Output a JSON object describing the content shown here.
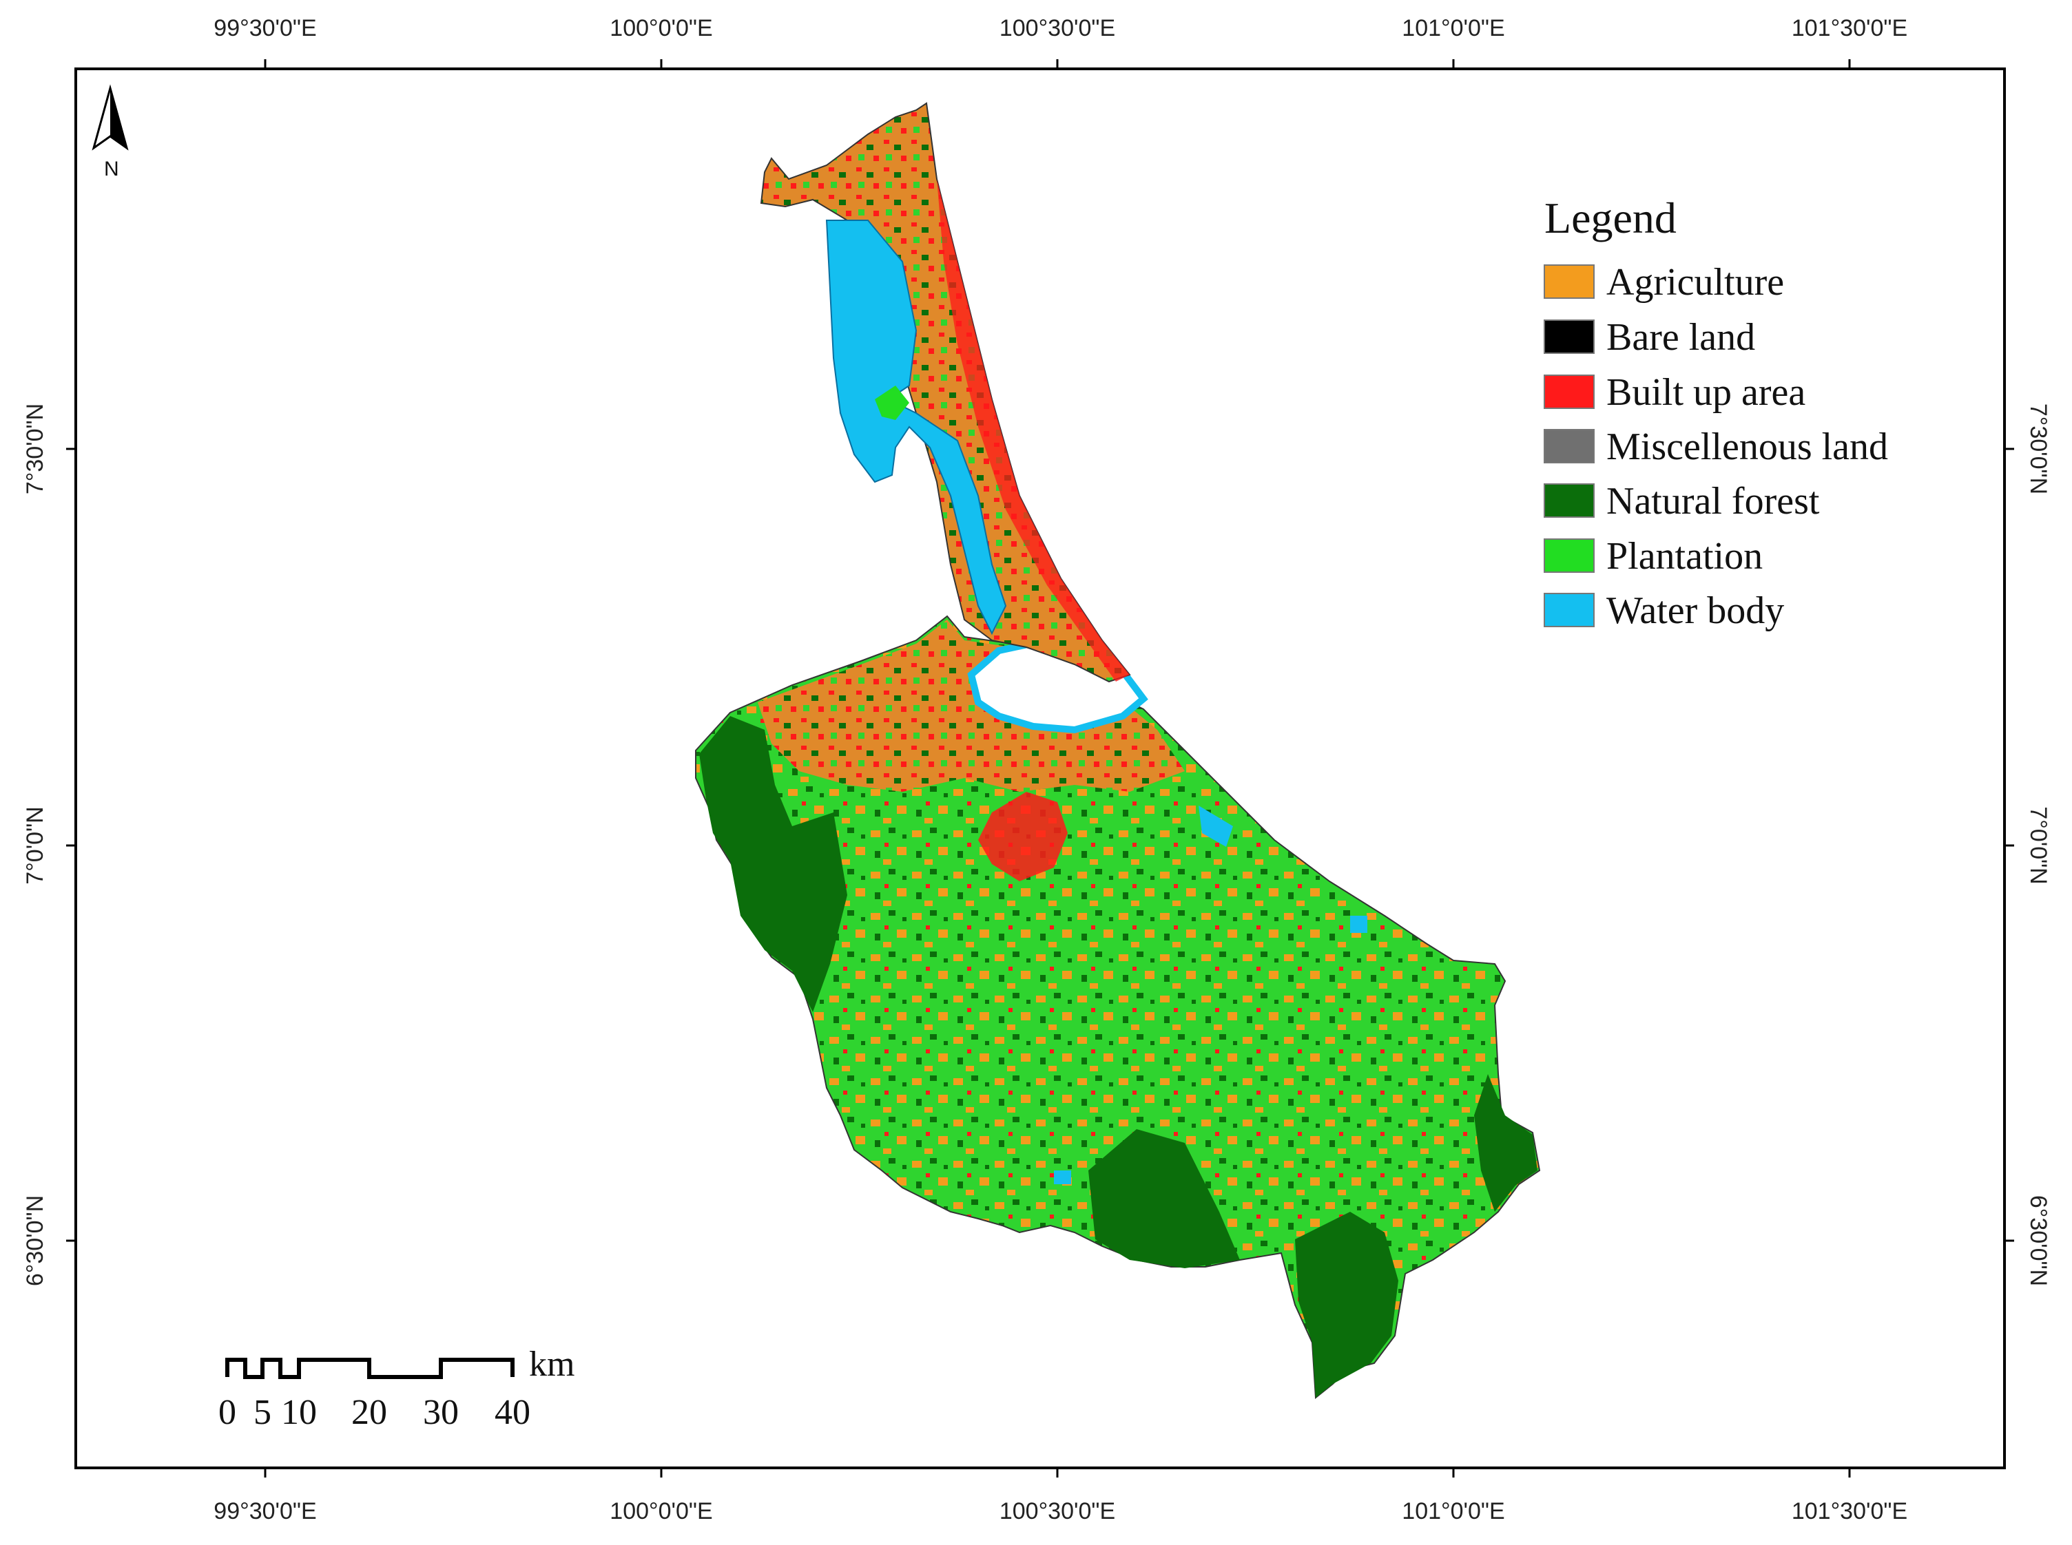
{
  "map": {
    "lon_labels": [
      "99°30'0\"E",
      "100°0'0\"E",
      "100°30'0\"E",
      "101°0'0\"E",
      "101°30'0\"E"
    ],
    "lat_labels": [
      "7°30'0\"N",
      "7°0'0\"N",
      "6°30'0\"N"
    ],
    "north_label": "N"
  },
  "legend": {
    "title": "Legend",
    "items": [
      {
        "label": "Agriculture",
        "color": "#f39c1e"
      },
      {
        "label": "Bare land",
        "color": "#000000"
      },
      {
        "label": "Built up area",
        "color": "#ff1a1a"
      },
      {
        "label": "Miscellenous land",
        "color": "#707070"
      },
      {
        "label": "Natural forest",
        "color": "#0b6e0b"
      },
      {
        "label": "Plantation",
        "color": "#22dd22"
      },
      {
        "label": "Water body",
        "color": "#14bff0"
      }
    ]
  },
  "scale_bar": {
    "unit": "km",
    "ticks": [
      "0",
      "5",
      "10",
      "20",
      "30",
      "40"
    ]
  }
}
